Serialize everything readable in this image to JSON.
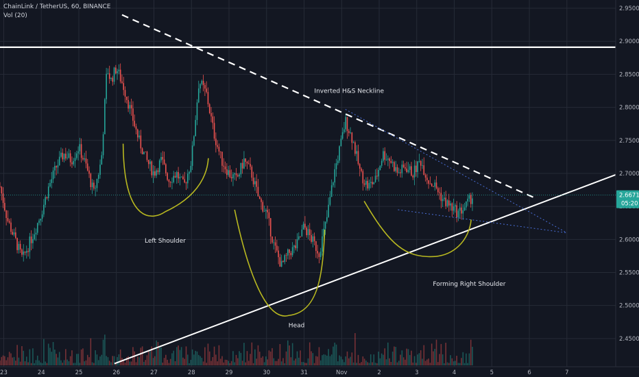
{
  "header": {
    "symbol_line": "ChainLink / TetherUS, 60, BINANCE",
    "volume_line": "Vol (20)"
  },
  "colors": {
    "background": "#131722",
    "grid": "#262b37",
    "up": "#26a69a",
    "down": "#ef5350",
    "trendline": "#ffffff",
    "pattern": "#b8b820",
    "wedge": "#4a6fd8",
    "price_tag": "#26a69a"
  },
  "chart_data": {
    "type": "candlestick",
    "ylim": [
      2.4125,
      2.9625
    ],
    "yticks": [
      2.45,
      2.5,
      2.55,
      2.6,
      2.65,
      2.7,
      2.75,
      2.8,
      2.85,
      2.9,
      2.95
    ],
    "ytick_labels": [
      "2.4500",
      "2.5000",
      "2.5500",
      "2.6000",
      "2.6500",
      "2.7000",
      "2.7500",
      "2.8000",
      "2.8500",
      "2.9000",
      "2.9500"
    ],
    "xticks": [
      {
        "d": 23,
        "label": "23"
      },
      {
        "d": 24,
        "label": "24"
      },
      {
        "d": 25,
        "label": "25"
      },
      {
        "d": 26,
        "label": "26"
      },
      {
        "d": 27,
        "label": "27"
      },
      {
        "d": 28,
        "label": "28"
      },
      {
        "d": 29,
        "label": "29"
      },
      {
        "d": 30,
        "label": "30"
      },
      {
        "d": 31,
        "label": "31"
      },
      {
        "d": 32,
        "label": "Nov"
      },
      {
        "d": 33,
        "label": "2"
      },
      {
        "d": 34,
        "label": "3"
      },
      {
        "d": 35,
        "label": "4"
      },
      {
        "d": 36,
        "label": "5"
      },
      {
        "d": 37,
        "label": "6"
      },
      {
        "d": 38,
        "label": "7"
      }
    ],
    "xlim": [
      22.9,
      39.3
    ],
    "last_price": {
      "value": 2.6671,
      "label": "2.6671",
      "countdown": "05:20"
    },
    "price_path": [
      [
        22.9,
        2.68
      ],
      [
        23.1,
        2.63
      ],
      [
        23.3,
        2.6
      ],
      [
        23.5,
        2.57
      ],
      [
        23.8,
        2.61
      ],
      [
        24.0,
        2.64
      ],
      [
        24.2,
        2.68
      ],
      [
        24.4,
        2.71
      ],
      [
        24.6,
        2.73
      ],
      [
        24.8,
        2.72
      ],
      [
        25.0,
        2.74
      ],
      [
        25.2,
        2.71
      ],
      [
        25.4,
        2.67
      ],
      [
        25.6,
        2.72
      ],
      [
        25.75,
        2.86
      ],
      [
        25.85,
        2.84
      ],
      [
        26.0,
        2.86
      ],
      [
        26.2,
        2.83
      ],
      [
        26.4,
        2.79
      ],
      [
        26.6,
        2.75
      ],
      [
        26.8,
        2.72
      ],
      [
        27.0,
        2.7
      ],
      [
        27.2,
        2.72
      ],
      [
        27.4,
        2.69
      ],
      [
        27.6,
        2.7
      ],
      [
        27.8,
        2.68
      ],
      [
        28.0,
        2.72
      ],
      [
        28.2,
        2.84
      ],
      [
        28.4,
        2.82
      ],
      [
        28.6,
        2.76
      ],
      [
        28.8,
        2.72
      ],
      [
        29.0,
        2.7
      ],
      [
        29.2,
        2.69
      ],
      [
        29.4,
        2.72
      ],
      [
        29.6,
        2.7
      ],
      [
        29.8,
        2.66
      ],
      [
        30.0,
        2.64
      ],
      [
        30.2,
        2.59
      ],
      [
        30.4,
        2.56
      ],
      [
        30.6,
        2.58
      ],
      [
        30.8,
        2.59
      ],
      [
        31.0,
        2.62
      ],
      [
        31.2,
        2.6
      ],
      [
        31.4,
        2.58
      ],
      [
        31.6,
        2.63
      ],
      [
        31.8,
        2.7
      ],
      [
        32.0,
        2.75
      ],
      [
        32.1,
        2.78
      ],
      [
        32.3,
        2.75
      ],
      [
        32.5,
        2.7
      ],
      [
        32.7,
        2.68
      ],
      [
        32.9,
        2.69
      ],
      [
        33.1,
        2.73
      ],
      [
        33.3,
        2.72
      ],
      [
        33.5,
        2.7
      ],
      [
        33.7,
        2.71
      ],
      [
        33.9,
        2.7
      ],
      [
        34.1,
        2.72
      ],
      [
        34.3,
        2.69
      ],
      [
        34.5,
        2.68
      ],
      [
        34.7,
        2.66
      ],
      [
        34.9,
        2.65
      ],
      [
        35.1,
        2.64
      ],
      [
        35.3,
        2.65
      ],
      [
        35.5,
        2.667
      ]
    ],
    "volume_max": 1,
    "lines": {
      "resistance": {
        "from": [
          22.9,
          2.891
        ],
        "to": [
          39.3,
          2.891
        ]
      },
      "neckline": {
        "from": [
          26.15,
          2.94
        ],
        "to": [
          37.1,
          2.664
        ],
        "style": "dashed",
        "label": "Inverted H&S Neckline"
      },
      "support": {
        "from": [
          25.95,
          2.412
        ],
        "to": [
          39.3,
          2.698
        ]
      },
      "wedge_upper": {
        "from": [
          32.1,
          2.797
        ],
        "to": [
          38.0,
          2.61
        ],
        "style": "dotted"
      },
      "wedge_lower": {
        "from": [
          33.5,
          2.645
        ],
        "to": [
          38.0,
          2.61
        ],
        "style": "dotted"
      }
    },
    "annotations": [
      {
        "text": "Left Shoulder",
        "x": 27.3,
        "y": 2.595
      },
      {
        "text": "Head",
        "x": 30.8,
        "y": 2.467
      },
      {
        "text": "Forming Right Shoulder",
        "x": 35.4,
        "y": 2.53
      },
      {
        "text": "Inverted H&S Neckline",
        "x": 32.2,
        "y": 2.822
      }
    ]
  }
}
